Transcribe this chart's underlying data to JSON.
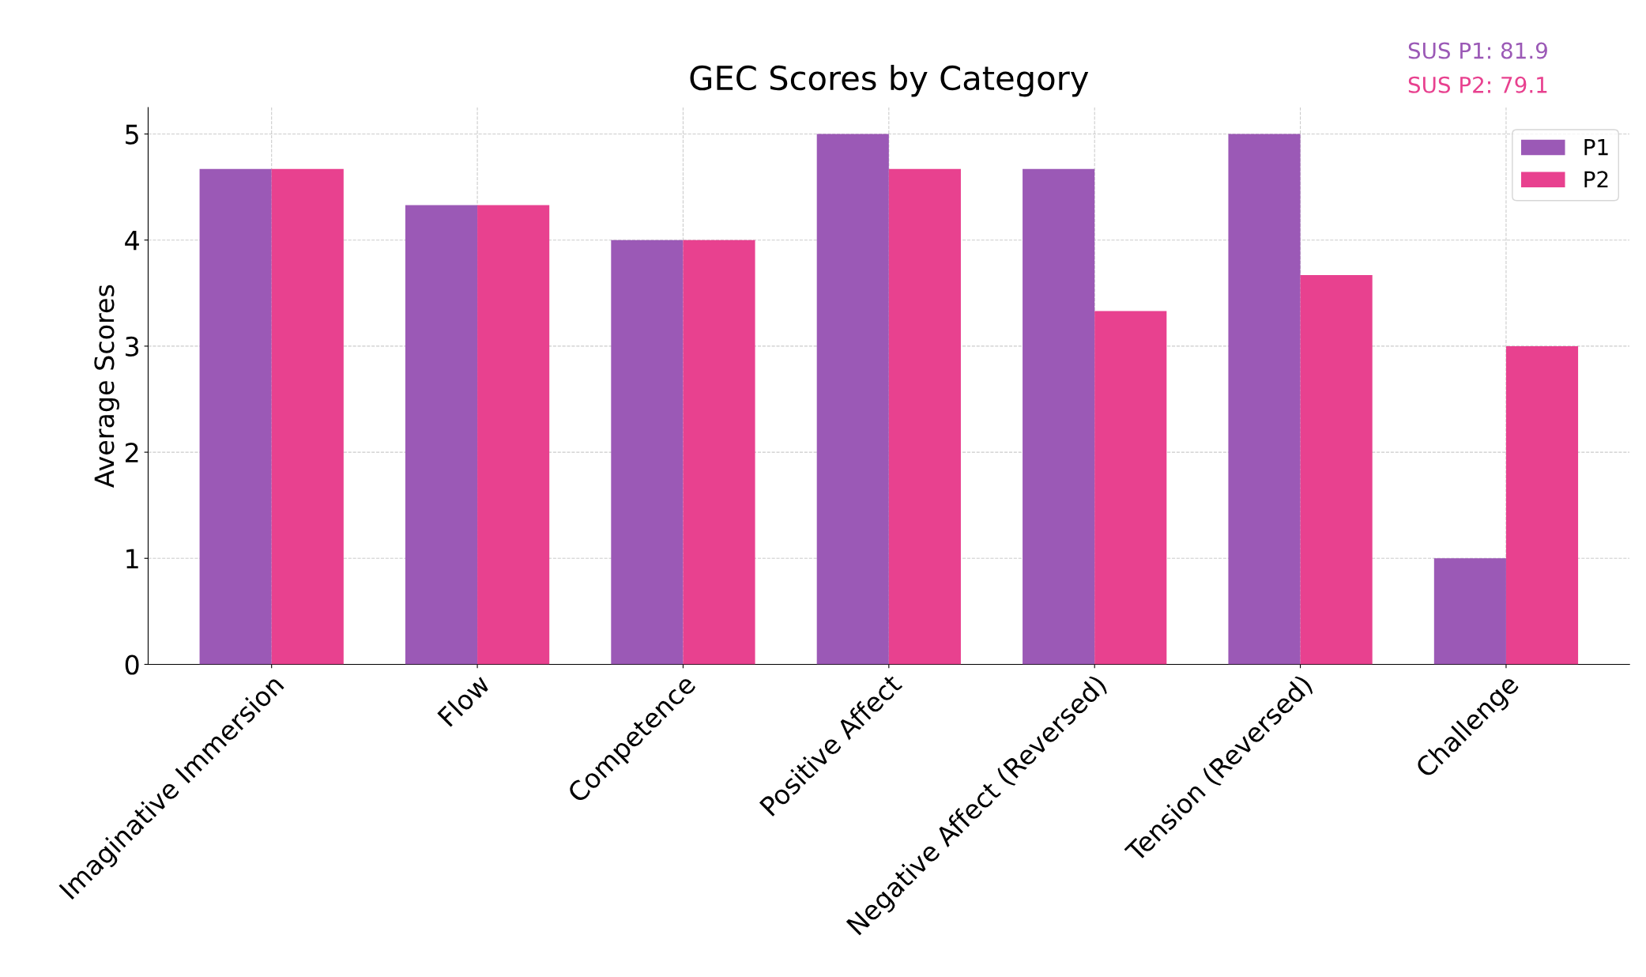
{
  "chart_data": {
    "type": "bar",
    "title": "GEC Scores by Category",
    "ylabel": "Average Scores",
    "categories": [
      "Imaginative Immersion",
      "Flow",
      "Competence",
      "Positive Affect",
      "Negative Affect (Reversed)",
      "Tension (Reversed)",
      "Challenge"
    ],
    "series": [
      {
        "name": "P1",
        "color": "#9b59b6",
        "values": [
          4.67,
          4.33,
          4.0,
          5.0,
          4.67,
          5.0,
          1.0
        ]
      },
      {
        "name": "P2",
        "color": "#e8418f",
        "values": [
          4.67,
          4.33,
          4.0,
          4.67,
          3.33,
          3.67,
          3.0
        ]
      }
    ],
    "ylim": [
      0,
      5.25
    ],
    "yticks": [
      0,
      1,
      2,
      3,
      4,
      5
    ],
    "grid": true,
    "legend": "top right",
    "annotations": [
      "SUS P1: 81.9",
      "SUS P2: 79.1"
    ]
  }
}
